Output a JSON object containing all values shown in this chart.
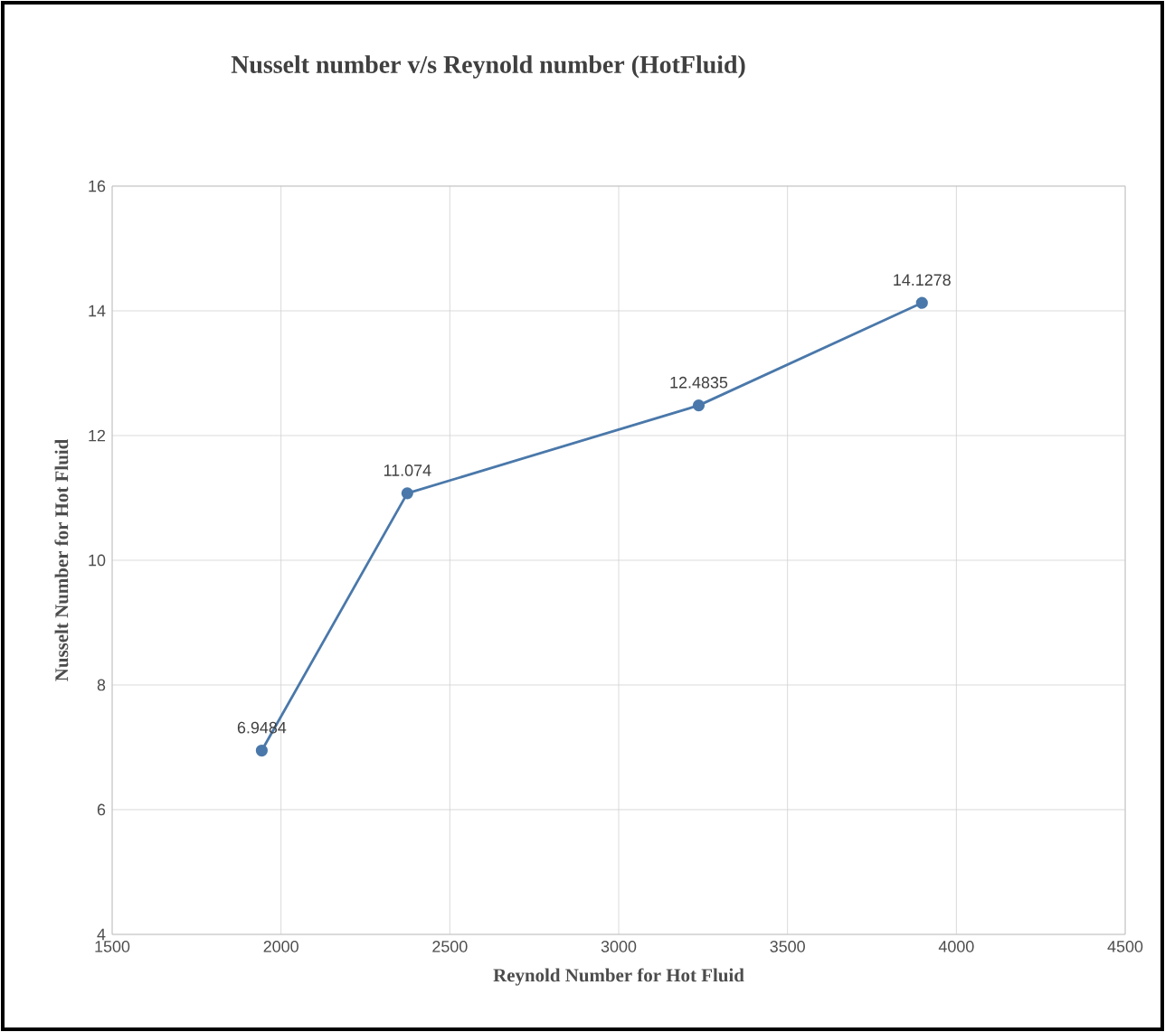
{
  "chart_data": {
    "type": "line",
    "title": "Nusselt number v/s Reynold number (HotFluid)",
    "xlabel": "Reynold Number for Hot Fluid",
    "ylabel": "Nusselt Number for Hot Fluid",
    "x": [
      1943,
      2374,
      3237,
      3898
    ],
    "series": [
      {
        "color": "#4a78aa",
        "values": [
          6.9484,
          11.074,
          12.4835,
          14.1278
        ]
      }
    ],
    "xlim": [
      1500,
      4500
    ],
    "xticks": [
      1500,
      2000,
      2500,
      3000,
      3500,
      4000,
      4500
    ],
    "ylim": [
      4,
      16
    ],
    "yticks": [
      4,
      6,
      8,
      10,
      12,
      14,
      16
    ],
    "grid": true,
    "marker": "circle",
    "line_style": "solid",
    "data_labels": true
  }
}
